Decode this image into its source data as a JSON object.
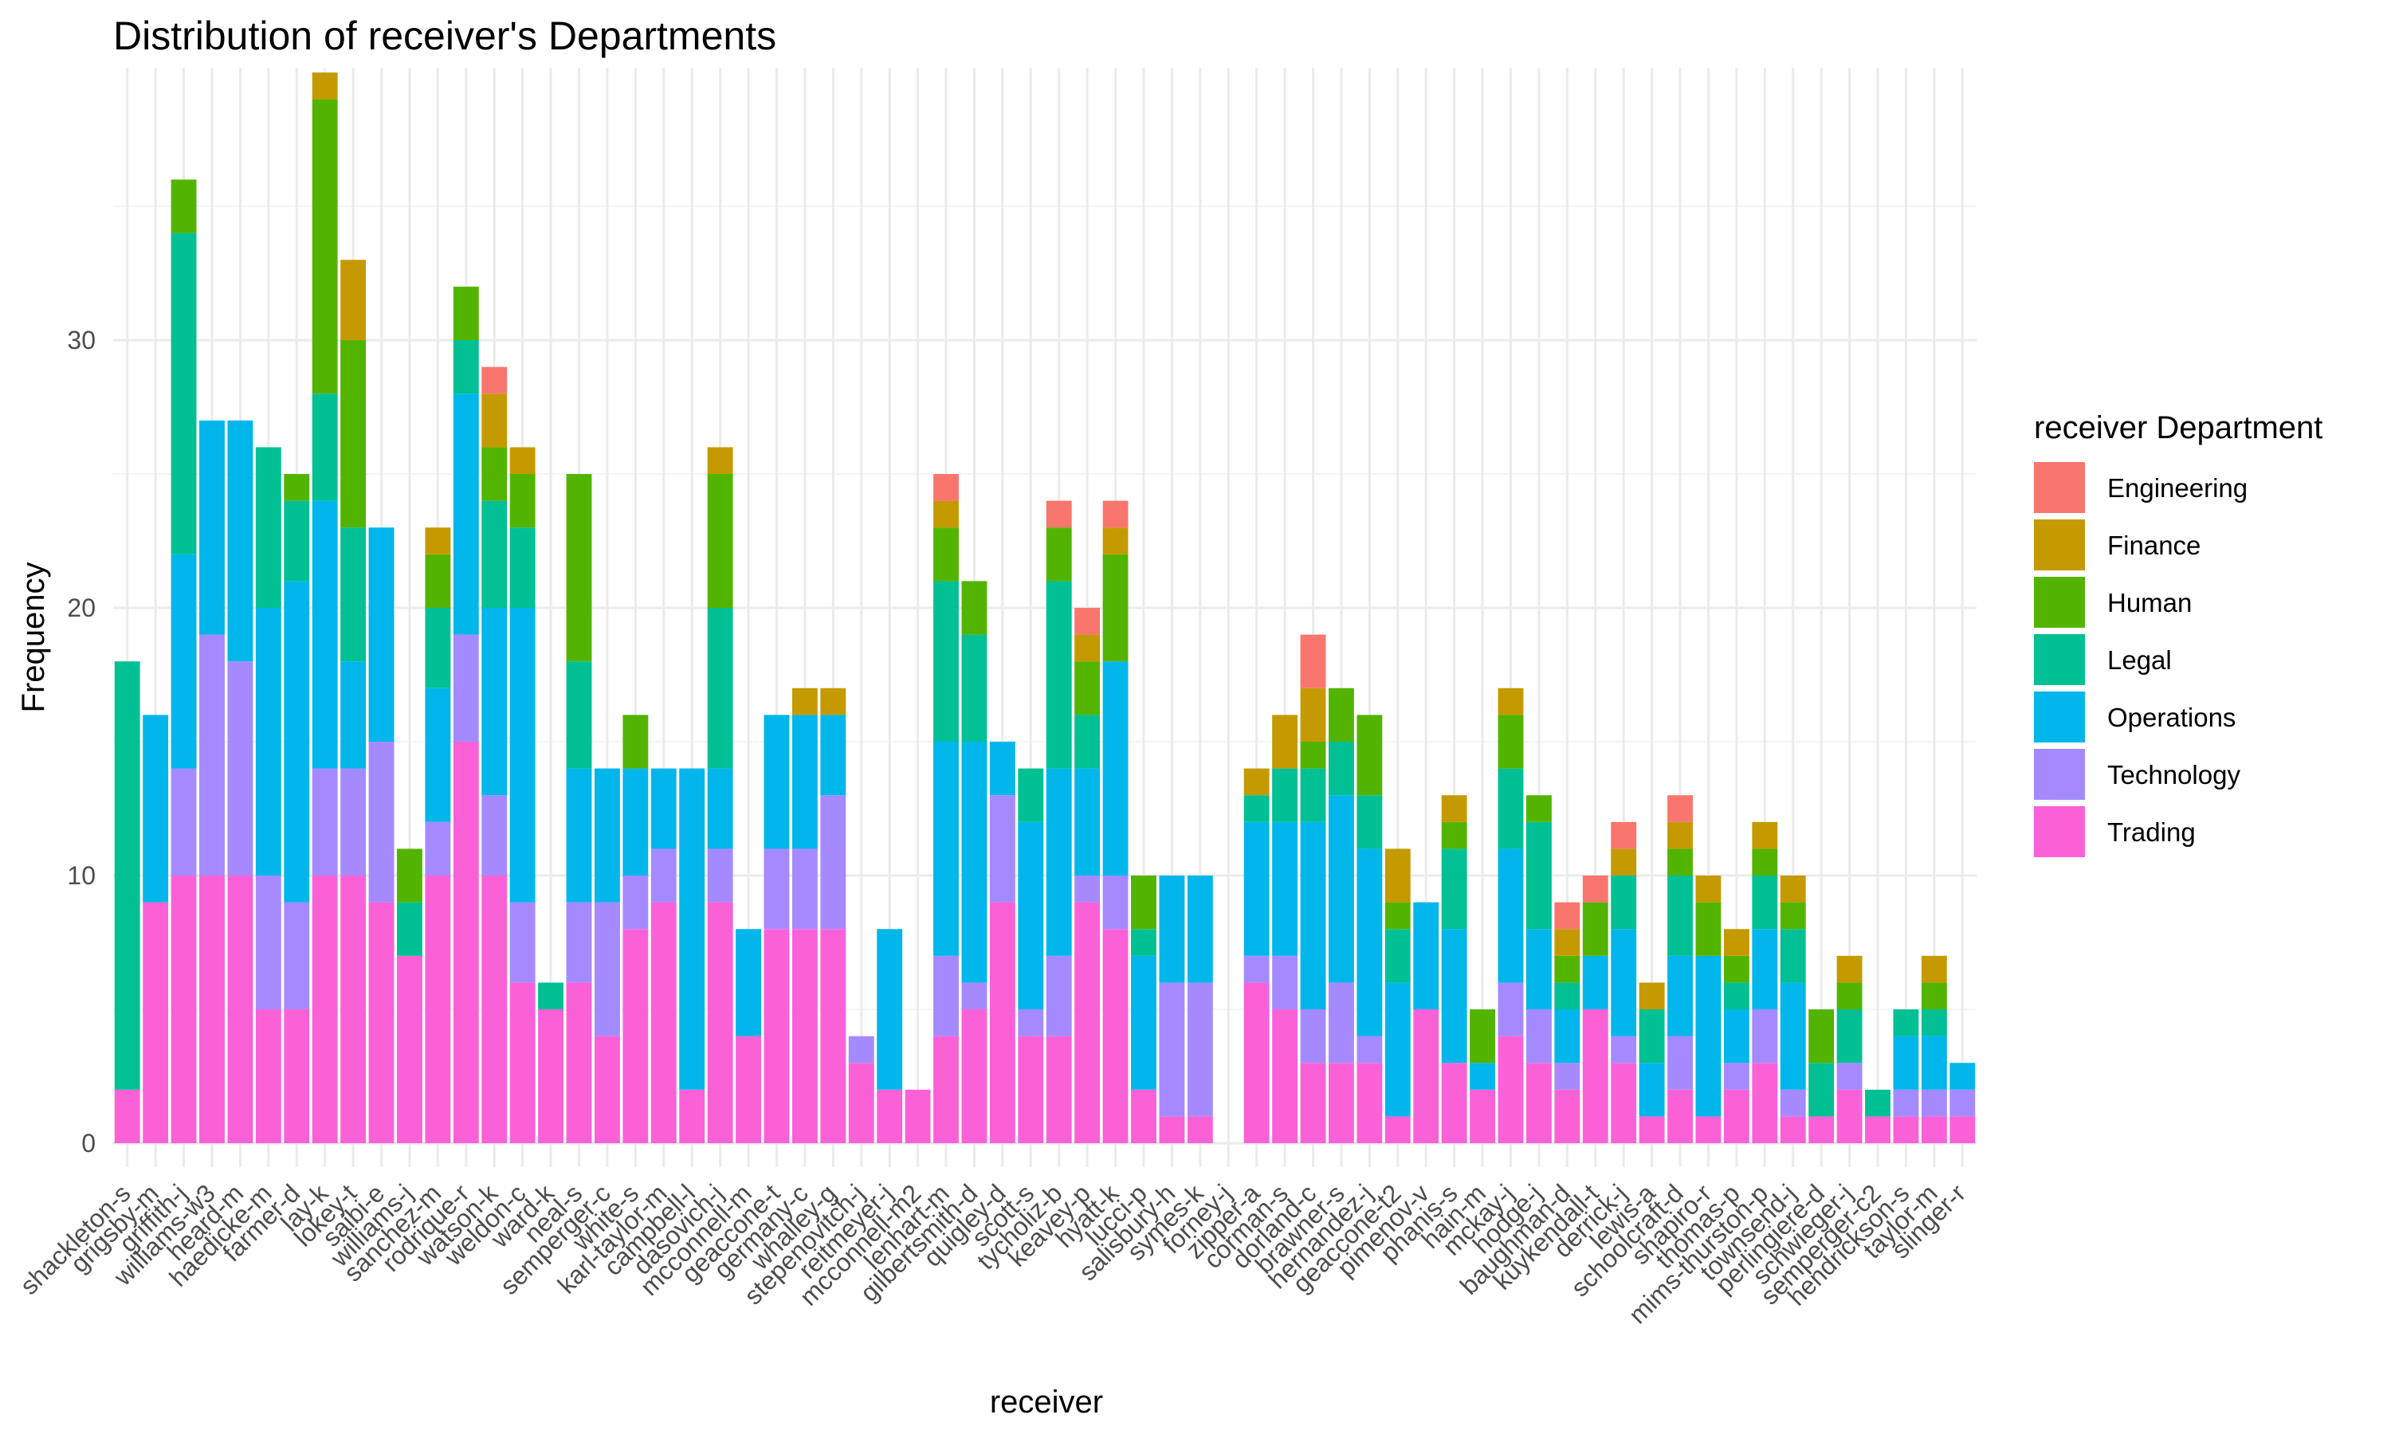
{
  "chart_data": {
    "type": "bar",
    "stacked": true,
    "title": "Distribution of receiver's Departments",
    "xlabel": "receiver",
    "ylabel": "Frequency",
    "ylim": [
      0,
      40
    ],
    "yticks": [
      0,
      10,
      20,
      30
    ],
    "grid": true,
    "legend": {
      "title": "receiver Department",
      "position": "right",
      "entries": [
        "Engineering",
        "Finance",
        "Human",
        "Legal",
        "Operations",
        "Technology",
        "Trading"
      ]
    },
    "colors": {
      "Engineering": "#F8766D",
      "Finance": "#C49A00",
      "Human": "#53B400",
      "Legal": "#00C094",
      "Operations": "#00B6EB",
      "Technology": "#A58AFF",
      "Trading": "#FB61D7"
    },
    "stack_order": [
      "Trading",
      "Technology",
      "Operations",
      "Legal",
      "Human",
      "Finance",
      "Engineering"
    ],
    "tick_labels": [
      "shackleton-s",
      "grigsby-m",
      "griffith-j",
      "williams-w3",
      "heard-m",
      "haedicke-m",
      "farmer-d",
      "lay-k",
      "lokey-t",
      "saibi-e",
      "williams-j",
      "sanchez-m",
      "rodrique-r",
      "watson-k",
      "weldon-c",
      "ward-k",
      "neal-s",
      "semperger-c",
      "white-s",
      "karl-taylor-m",
      "campbell-l",
      "dasovich-j",
      "mcconnell-m",
      "geaccone-t",
      "germany-c",
      "whalley-g",
      "stepenovitch-j",
      "reitmeyer-j",
      "mcconnell-m2",
      "lenhart-m",
      "gilbertsmith-d",
      "quigley-d",
      "scott-s",
      "tycholiz-b",
      "keavey-p",
      "hyatt-k",
      "lucci-p",
      "salisbury-h",
      "symes-k",
      "forney-j",
      "zipper-a",
      "corman-s",
      "dorland-c",
      "brawner-s",
      "hernandez-j",
      "geaccone-t2",
      "pimenov-v",
      "phanis-s",
      "hain-m",
      "mckay-j",
      "hodge-j",
      "baughman-d",
      "kuykendall-t",
      "derrick-j",
      "lewis-a",
      "schoolcraft-d",
      "shapiro-r",
      "thomas-p",
      "mims-thurston-p",
      "townsend-j",
      "perlingiere-d",
      "schwieger-j",
      "semperger-c2",
      "hendrickson-s",
      "taylor-m",
      "slinger-r"
    ],
    "categories": [
      "shackleton-s",
      "grigsby-m",
      "griffith-j",
      "williams-w3",
      "heard-m",
      "haedicke-m",
      "farmer-d",
      "lay-k",
      "lokey-t",
      "saibi-e",
      "williams-j",
      "sanchez-m",
      "rodrique-r",
      "watson-k",
      "weldon-c",
      "ward-k",
      "neal-s",
      "semperger-c",
      "white-s",
      "karl-taylor-m",
      "campbell-l",
      "dasovich-j",
      "mcconnell-m",
      "geaccone-t",
      "germany-c",
      "whalley-g",
      "stepenovitch-j",
      "reitmeyer-j",
      "mcconnell-m2",
      "lenhart-m",
      "gilbertsmith-d",
      "quigley-d",
      "scott-s",
      "tycholiz-b",
      "keavey-p",
      "hyatt-k",
      "lucci-p",
      "salisbury-h",
      "symes-k",
      "forney-j",
      "zipper-a",
      "corman-s",
      "dorland-c",
      "brawner-s",
      "hernandez-j",
      "geaccone-t2",
      "pimenov-v",
      "phanis-s",
      "hain-m",
      "mckay-j",
      "hodge-j",
      "baughman-d",
      "kuykendall-t",
      "derrick-j",
      "lewis-a",
      "schoolcraft-d",
      "shapiro-r",
      "thomas-p",
      "mims-thurston-p",
      "townsend-j",
      "perlingiere-d",
      "schwieger-j",
      "semperger-c2",
      "hendrickson-s",
      "taylor-m",
      "slinger-r"
    ],
    "series": [
      {
        "name": "Trading",
        "values": [
          2,
          9,
          10,
          10,
          10,
          5,
          5,
          10,
          10,
          9,
          7,
          10,
          15,
          10,
          6,
          5,
          6,
          4,
          8,
          9,
          2,
          9,
          4,
          8,
          8,
          8,
          3,
          2,
          2,
          4,
          5,
          9,
          4,
          4,
          9,
          8,
          2,
          1,
          1,
          0,
          6,
          5,
          3,
          3,
          3,
          1,
          5,
          3,
          2,
          4,
          3,
          2,
          5,
          3,
          1,
          2,
          1,
          2,
          3,
          1,
          1,
          2,
          1,
          1,
          1,
          1
        ]
      },
      {
        "name": "Technology",
        "values": [
          0,
          0,
          4,
          9,
          8,
          5,
          4,
          4,
          4,
          6,
          0,
          2,
          4,
          3,
          3,
          0,
          3,
          5,
          2,
          2,
          0,
          2,
          0,
          3,
          3,
          5,
          1,
          0,
          0,
          3,
          1,
          4,
          1,
          3,
          1,
          2,
          0,
          5,
          5,
          0,
          1,
          2,
          2,
          3,
          1,
          0,
          0,
          0,
          0,
          2,
          2,
          1,
          0,
          1,
          0,
          2,
          0,
          1,
          2,
          1,
          0,
          1,
          0,
          1,
          1,
          1
        ]
      },
      {
        "name": "Operations",
        "values": [
          0,
          7,
          8,
          8,
          9,
          10,
          12,
          10,
          4,
          8,
          0,
          5,
          9,
          7,
          11,
          0,
          5,
          5,
          4,
          3,
          12,
          3,
          4,
          5,
          5,
          3,
          0,
          6,
          0,
          8,
          9,
          2,
          7,
          7,
          4,
          8,
          5,
          4,
          4,
          0,
          5,
          5,
          7,
          7,
          7,
          5,
          4,
          5,
          1,
          5,
          3,
          2,
          2,
          4,
          2,
          3,
          6,
          2,
          3,
          4,
          0,
          0,
          0,
          2,
          2,
          1
        ]
      },
      {
        "name": "Legal",
        "values": [
          16,
          0,
          12,
          0,
          0,
          6,
          3,
          4,
          5,
          0,
          2,
          3,
          2,
          4,
          3,
          1,
          4,
          0,
          0,
          0,
          0,
          6,
          0,
          0,
          0,
          0,
          0,
          0,
          0,
          6,
          4,
          0,
          2,
          7,
          2,
          0,
          1,
          0,
          0,
          0,
          1,
          2,
          2,
          2,
          2,
          2,
          0,
          3,
          0,
          3,
          4,
          1,
          0,
          2,
          2,
          3,
          0,
          1,
          2,
          2,
          2,
          2,
          1,
          1,
          1,
          0
        ]
      },
      {
        "name": "Human",
        "values": [
          0,
          0,
          2,
          0,
          0,
          0,
          1,
          11,
          7,
          0,
          2,
          2,
          2,
          2,
          2,
          0,
          7,
          0,
          2,
          0,
          0,
          5,
          0,
          0,
          0,
          0,
          0,
          0,
          0,
          2,
          2,
          0,
          0,
          2,
          2,
          4,
          2,
          0,
          0,
          0,
          0,
          0,
          1,
          2,
          3,
          1,
          0,
          1,
          2,
          2,
          1,
          1,
          2,
          0,
          0,
          1,
          2,
          1,
          1,
          1,
          2,
          1,
          0,
          0,
          1,
          0
        ]
      },
      {
        "name": "Finance",
        "values": [
          0,
          0,
          0,
          0,
          0,
          0,
          0,
          1,
          3,
          0,
          0,
          1,
          0,
          2,
          1,
          0,
          0,
          0,
          0,
          0,
          0,
          1,
          0,
          0,
          1,
          1,
          0,
          0,
          0,
          1,
          0,
          0,
          0,
          0,
          1,
          1,
          0,
          0,
          0,
          0,
          1,
          2,
          2,
          0,
          0,
          2,
          0,
          1,
          0,
          1,
          0,
          1,
          0,
          1,
          1,
          1,
          1,
          1,
          1,
          1,
          0,
          1,
          0,
          0,
          1,
          0
        ]
      },
      {
        "name": "Engineering",
        "values": [
          0,
          0,
          0,
          0,
          0,
          0,
          0,
          0,
          0,
          0,
          0,
          0,
          0,
          1,
          0,
          0,
          0,
          0,
          0,
          0,
          0,
          0,
          0,
          0,
          0,
          0,
          0,
          0,
          0,
          1,
          0,
          0,
          0,
          1,
          1,
          1,
          0,
          0,
          0,
          0,
          0,
          0,
          2,
          0,
          0,
          0,
          0,
          0,
          0,
          0,
          0,
          1,
          1,
          1,
          0,
          1,
          0,
          0,
          0,
          0,
          0,
          0,
          0,
          0,
          0,
          0
        ]
      }
    ]
  }
}
